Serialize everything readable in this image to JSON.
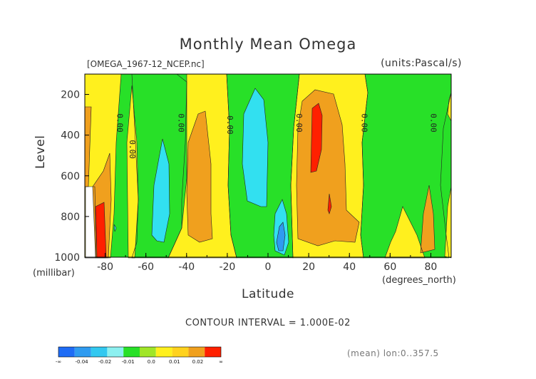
{
  "title": "Monthly Mean Omega",
  "file_label": "[OMEGA_1967-12_NCEP.nc]",
  "units_label": "(units:Pascal/s)",
  "contour_interval": "CONTOUR INTERVAL = 1.000E-02",
  "mean_label": "(mean) lon:0..357.5",
  "chart_data": {
    "type": "heatmap",
    "title": "Monthly Mean Omega",
    "xlabel": "Latitude",
    "ylabel": "Level",
    "xunit": "(degrees_north)",
    "yunit": "(millibar)",
    "xlim": [
      -90,
      90
    ],
    "ylim": [
      1000,
      100
    ],
    "x_ticks": [
      -80,
      -60,
      -40,
      -20,
      0,
      20,
      40,
      60,
      80
    ],
    "y_ticks": [
      200,
      400,
      600,
      800,
      1000
    ],
    "contour_labels": [
      {
        "text": "0.00",
        "lat": -74,
        "level": 340
      },
      {
        "text": "0.00",
        "lat": -68,
        "level": 470
      },
      {
        "text": "0.00",
        "lat": -44,
        "level": 340
      },
      {
        "text": "0.00",
        "lat": -20,
        "level": 350
      },
      {
        "text": "0.00",
        "lat": 14,
        "level": 340
      },
      {
        "text": "0.00",
        "lat": 46,
        "level": 340
      },
      {
        "text": "0.00",
        "lat": 80,
        "level": 340
      }
    ],
    "colorbar": {
      "labels": [
        "-∞",
        "-0.04",
        "-0.02",
        "-0.01",
        "0.0",
        "0.01",
        "0.02",
        "∞"
      ],
      "colors": [
        "#1e6cf5",
        "#2f9bf0",
        "#32c8f0",
        "#8cf0f0",
        "#28e028",
        "#a0e628",
        "#fff01e",
        "#ffd21e",
        "#f0a01e",
        "#ff2000"
      ]
    },
    "palette": {
      "bg": "#ffffff",
      "green": "#28e028",
      "yellow": "#fff01e",
      "orange": "#f0a01e",
      "red": "#ff2000",
      "cyan": "#32e0f0",
      "blue": "#2f9bf0"
    }
  }
}
